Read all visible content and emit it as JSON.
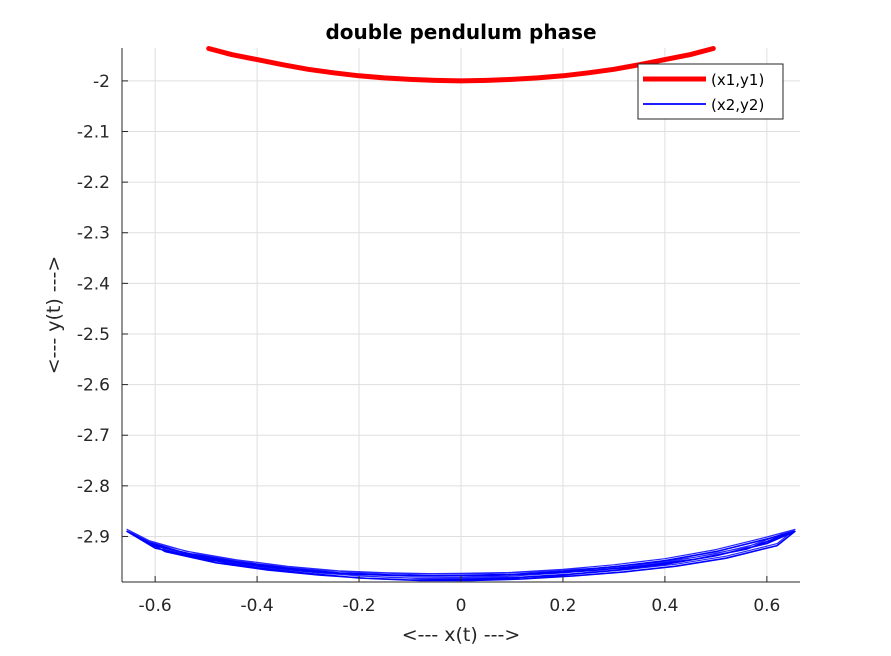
{
  "chart_data": {
    "type": "line",
    "title": "double pendulum phase",
    "xlabel": "<--- x(t) --->",
    "ylabel": "<--- y(t) --->",
    "xlim": [
      -0.665,
      0.665
    ],
    "ylim": [
      -2.99,
      -1.935
    ],
    "xticks": [
      -0.6,
      -0.4,
      -0.2,
      0,
      0.2,
      0.4,
      0.6
    ],
    "xtick_labels": [
      "-0.6",
      "-0.4",
      "-0.2",
      "0",
      "0.2",
      "0.4",
      "0.6"
    ],
    "yticks": [
      -2.9,
      -2.8,
      -2.7,
      -2.6,
      -2.5,
      -2.4,
      -2.3,
      -2.2,
      -2.1,
      -2.0
    ],
    "ytick_labels": [
      "-2.9",
      "-2.8",
      "-2.7",
      "-2.6",
      "-2.5",
      "-2.4",
      "-2.3",
      "-2.2",
      "-2.1",
      "-2"
    ],
    "grid": true,
    "legend_position": "top-right",
    "series": [
      {
        "name": "(x1,y1)",
        "color": "#ff0000",
        "style": "thick",
        "x": [
          -0.495,
          -0.45,
          -0.4,
          -0.35,
          -0.3,
          -0.25,
          -0.2,
          -0.15,
          -0.1,
          -0.05,
          0,
          0.05,
          0.1,
          0.15,
          0.2,
          0.25,
          0.3,
          0.35,
          0.4,
          0.45,
          0.495
        ],
        "y": [
          -1.936,
          -1.948,
          -1.958,
          -1.968,
          -1.977,
          -1.984,
          -1.99,
          -1.994,
          -1.997,
          -1.999,
          -2.0,
          -1.999,
          -1.997,
          -1.994,
          -1.99,
          -1.984,
          -1.977,
          -1.968,
          -1.958,
          -1.948,
          -1.936
        ]
      },
      {
        "name": "(x2,y2)",
        "color": "#0000ff",
        "style": "thin",
        "x": [
          -0.655,
          -0.6,
          -0.5,
          -0.4,
          -0.3,
          -0.2,
          -0.1,
          0,
          0.1,
          0.2,
          0.3,
          0.4,
          0.5,
          0.6,
          0.655,
          0.6,
          0.5,
          0.4,
          0.3,
          0.2,
          0.1,
          0,
          -0.1,
          -0.2,
          -0.3,
          -0.4,
          -0.5,
          -0.6,
          -0.655,
          -0.58,
          -0.48,
          -0.38,
          -0.28,
          -0.18,
          -0.08,
          0.02,
          0.12,
          0.22,
          0.32,
          0.42,
          0.52,
          0.62,
          0.655,
          0.56,
          0.46,
          0.36,
          0.26,
          0.16,
          0.06,
          -0.04,
          -0.14,
          -0.24,
          -0.34,
          -0.44,
          -0.54,
          -0.62,
          -0.655
        ],
        "y": [
          -2.89,
          -2.923,
          -2.945,
          -2.962,
          -2.973,
          -2.982,
          -2.986,
          -2.985,
          -2.982,
          -2.976,
          -2.967,
          -2.955,
          -2.938,
          -2.914,
          -2.89,
          -2.905,
          -2.93,
          -2.948,
          -2.96,
          -2.969,
          -2.975,
          -2.977,
          -2.978,
          -2.975,
          -2.969,
          -2.958,
          -2.942,
          -2.918,
          -2.89,
          -2.93,
          -2.952,
          -2.966,
          -2.976,
          -2.983,
          -2.987,
          -2.987,
          -2.984,
          -2.978,
          -2.97,
          -2.959,
          -2.943,
          -2.918,
          -2.89,
          -2.925,
          -2.945,
          -2.958,
          -2.967,
          -2.973,
          -2.977,
          -2.978,
          -2.976,
          -2.972,
          -2.963,
          -2.95,
          -2.933,
          -2.91,
          -2.89
        ]
      }
    ]
  }
}
